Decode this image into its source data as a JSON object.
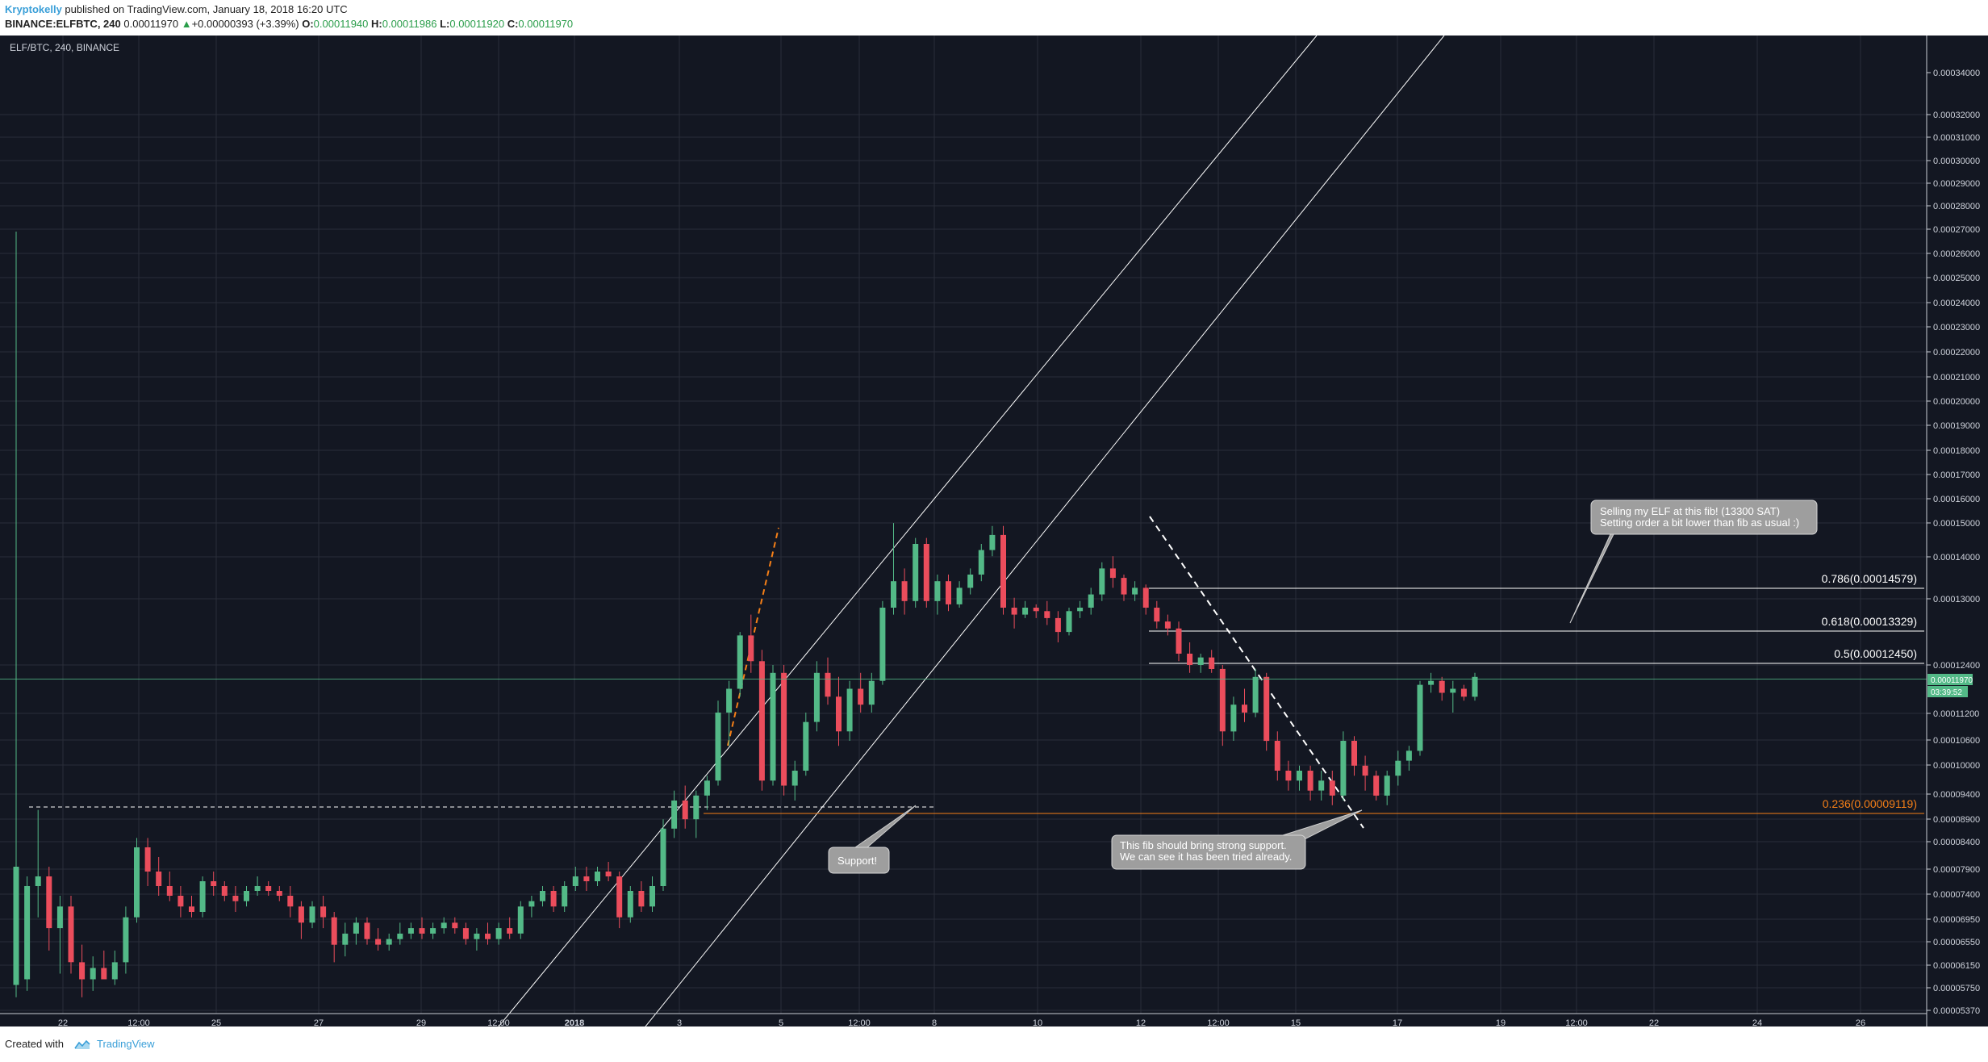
{
  "header": {
    "author": "Kryptokelly",
    "published": " published on TradingView.com, January 18, 2018 16:20 UTC",
    "symbol": "BINANCE:ELFBTC, 240",
    "last": "0.00011970",
    "change_arrow": "▲",
    "change": "+0.00000393 (+3.39%)",
    "o_label": "O:",
    "o_value": "0.00011940",
    "h_label": "H:",
    "h_value": "0.00011986",
    "l_label": "L:",
    "l_value": "0.00011920",
    "c_label": "C:",
    "c_value": "0.00011970"
  },
  "chart_data": {
    "type": "candlestick",
    "title": "ELF/BTC, 240, BINANCE",
    "y_ticks": [
      "0.00034000",
      "0.00032000",
      "0.00031000",
      "0.00030000",
      "0.00029000",
      "0.00028000",
      "0.00027000",
      "0.00026000",
      "0.00025000",
      "0.00024000",
      "0.00023000",
      "0.00022000",
      "0.00021000",
      "0.00020000",
      "0.00019000",
      "0.00018000",
      "0.00017000",
      "0.00016000",
      "0.00015000",
      "0.00014000",
      "0.00013000",
      "0.00012400",
      "0.00011200",
      "0.00010600",
      "0.00010000",
      "0.00009400",
      "0.00008900",
      "0.00008400",
      "0.00007900",
      "0.00007400",
      "0.00006950",
      "0.00006550",
      "0.00006150",
      "0.00005750",
      "0.00005370"
    ],
    "x_ticks": [
      "22",
      "12:00",
      "25",
      "27",
      "29",
      "12:00",
      "2018",
      "3",
      "5",
      "12:00",
      "8",
      "10",
      "12",
      "12:00",
      "15",
      "17",
      "19",
      "12:00",
      "22",
      "24",
      "26"
    ],
    "last_price_label": "0.00011970",
    "countdown_label": "03:39:52",
    "fib_levels": [
      {
        "label": "0.786(0.00014579)",
        "price": 0.00014579
      },
      {
        "label": "0.618(0.00013329)",
        "price": 0.00013329
      },
      {
        "label": "0.5(0.00012450)",
        "price": 0.0001245
      },
      {
        "label": "0.236(0.00009119)",
        "price": 9.119e-05
      }
    ],
    "annotations": [
      {
        "lines": [
          "Selling my ELF at this fib! (13300 SAT)",
          "Setting order a bit lower than fib as usual :)"
        ]
      },
      {
        "lines": [
          "Support!"
        ]
      },
      {
        "lines": [
          "This fib should bring strong support.",
          "We can see it has been tried already."
        ]
      }
    ],
    "candles": [
      {
        "o": 5.8e-05,
        "h": 0.00029,
        "l": 5.6e-05,
        "c": 8e-05
      },
      {
        "o": 5.9e-05,
        "h": 7.8e-05,
        "l": 5.7e-05,
        "c": 7.6e-05
      },
      {
        "o": 7.6e-05,
        "h": 9.2e-05,
        "l": 7e-05,
        "c": 7.8e-05
      },
      {
        "o": 7.8e-05,
        "h": 8e-05,
        "l": 6.4e-05,
        "c": 6.8e-05
      },
      {
        "o": 6.8e-05,
        "h": 7.4e-05,
        "l": 6e-05,
        "c": 7.2e-05
      },
      {
        "o": 7.2e-05,
        "h": 7.4e-05,
        "l": 6e-05,
        "c": 6.2e-05
      },
      {
        "o": 6.2e-05,
        "h": 6.5e-05,
        "l": 5.6e-05,
        "c": 5.9e-05
      },
      {
        "o": 5.9e-05,
        "h": 6.3e-05,
        "l": 5.7e-05,
        "c": 6.1e-05
      },
      {
        "o": 6.1e-05,
        "h": 6.4e-05,
        "l": 5.9e-05,
        "c": 5.9e-05
      },
      {
        "o": 5.9e-05,
        "h": 6.4e-05,
        "l": 5.8e-05,
        "c": 6.2e-05
      },
      {
        "o": 6.2e-05,
        "h": 7.2e-05,
        "l": 6e-05,
        "c": 7e-05
      },
      {
        "o": 7e-05,
        "h": 8.6e-05,
        "l": 6.9e-05,
        "c": 8.4e-05
      },
      {
        "o": 8.4e-05,
        "h": 8.6e-05,
        "l": 7.6e-05,
        "c": 7.9e-05
      },
      {
        "o": 7.9e-05,
        "h": 8.2e-05,
        "l": 7.4e-05,
        "c": 7.6e-05
      },
      {
        "o": 7.6e-05,
        "h": 7.9e-05,
        "l": 7.3e-05,
        "c": 7.4e-05
      },
      {
        "o": 7.4e-05,
        "h": 7.6e-05,
        "l": 7e-05,
        "c": 7.2e-05
      },
      {
        "o": 7.2e-05,
        "h": 7.4e-05,
        "l": 7e-05,
        "c": 7.1e-05
      },
      {
        "o": 7.1e-05,
        "h": 7.8e-05,
        "l": 7e-05,
        "c": 7.7e-05
      },
      {
        "o": 7.7e-05,
        "h": 7.9e-05,
        "l": 7.4e-05,
        "c": 7.6e-05
      },
      {
        "o": 7.6e-05,
        "h": 7.7e-05,
        "l": 7.3e-05,
        "c": 7.4e-05
      },
      {
        "o": 7.4e-05,
        "h": 7.6e-05,
        "l": 7.1e-05,
        "c": 7.3e-05
      },
      {
        "o": 7.3e-05,
        "h": 7.6e-05,
        "l": 7.2e-05,
        "c": 7.5e-05
      },
      {
        "o": 7.5e-05,
        "h": 7.8e-05,
        "l": 7.4e-05,
        "c": 7.6e-05
      },
      {
        "o": 7.6e-05,
        "h": 7.7e-05,
        "l": 7.4e-05,
        "c": 7.5e-05
      },
      {
        "o": 7.5e-05,
        "h": 7.6e-05,
        "l": 7.3e-05,
        "c": 7.4e-05
      },
      {
        "o": 7.4e-05,
        "h": 7.6e-05,
        "l": 7e-05,
        "c": 7.2e-05
      },
      {
        "o": 7.2e-05,
        "h": 7.3e-05,
        "l": 6.6e-05,
        "c": 6.9e-05
      },
      {
        "o": 6.9e-05,
        "h": 7.3e-05,
        "l": 6.8e-05,
        "c": 7.2e-05
      },
      {
        "o": 7.2e-05,
        "h": 7.4e-05,
        "l": 6.8e-05,
        "c": 7e-05
      },
      {
        "o": 7e-05,
        "h": 7.1e-05,
        "l": 6.2e-05,
        "c": 6.5e-05
      },
      {
        "o": 6.5e-05,
        "h": 6.9e-05,
        "l": 6.3e-05,
        "c": 6.7e-05
      },
      {
        "o": 6.7e-05,
        "h": 7e-05,
        "l": 6.5e-05,
        "c": 6.9e-05
      },
      {
        "o": 6.9e-05,
        "h": 7e-05,
        "l": 6.5e-05,
        "c": 6.6e-05
      },
      {
        "o": 6.6e-05,
        "h": 6.8e-05,
        "l": 6.4e-05,
        "c": 6.5e-05
      },
      {
        "o": 6.5e-05,
        "h": 6.7e-05,
        "l": 6.4e-05,
        "c": 6.6e-05
      },
      {
        "o": 6.6e-05,
        "h": 6.9e-05,
        "l": 6.5e-05,
        "c": 6.7e-05
      },
      {
        "o": 6.7e-05,
        "h": 6.9e-05,
        "l": 6.6e-05,
        "c": 6.8e-05
      },
      {
        "o": 6.8e-05,
        "h": 7e-05,
        "l": 6.6e-05,
        "c": 6.7e-05
      },
      {
        "o": 6.7e-05,
        "h": 6.9e-05,
        "l": 6.6e-05,
        "c": 6.8e-05
      },
      {
        "o": 6.8e-05,
        "h": 7e-05,
        "l": 6.7e-05,
        "c": 6.9e-05
      },
      {
        "o": 6.9e-05,
        "h": 7e-05,
        "l": 6.7e-05,
        "c": 6.8e-05
      },
      {
        "o": 6.8e-05,
        "h": 6.9e-05,
        "l": 6.5e-05,
        "c": 6.6e-05
      },
      {
        "o": 6.6e-05,
        "h": 6.8e-05,
        "l": 6.4e-05,
        "c": 6.7e-05
      },
      {
        "o": 6.7e-05,
        "h": 6.9e-05,
        "l": 6.5e-05,
        "c": 6.6e-05
      },
      {
        "o": 6.6e-05,
        "h": 6.9e-05,
        "l": 6.5e-05,
        "c": 6.8e-05
      },
      {
        "o": 6.8e-05,
        "h": 7e-05,
        "l": 6.6e-05,
        "c": 6.7e-05
      },
      {
        "o": 6.7e-05,
        "h": 7.3e-05,
        "l": 6.6e-05,
        "c": 7.2e-05
      },
      {
        "o": 7.2e-05,
        "h": 7.4e-05,
        "l": 7e-05,
        "c": 7.3e-05
      },
      {
        "o": 7.3e-05,
        "h": 7.6e-05,
        "l": 7.2e-05,
        "c": 7.5e-05
      },
      {
        "o": 7.5e-05,
        "h": 7.6e-05,
        "l": 7.1e-05,
        "c": 7.2e-05
      },
      {
        "o": 7.2e-05,
        "h": 7.7e-05,
        "l": 7.1e-05,
        "c": 7.6e-05
      },
      {
        "o": 7.6e-05,
        "h": 8e-05,
        "l": 7.5e-05,
        "c": 7.8e-05
      },
      {
        "o": 7.8e-05,
        "h": 8e-05,
        "l": 7.5e-05,
        "c": 7.7e-05
      },
      {
        "o": 7.7e-05,
        "h": 8e-05,
        "l": 7.6e-05,
        "c": 7.9e-05
      },
      {
        "o": 7.9e-05,
        "h": 8.1e-05,
        "l": 7.7e-05,
        "c": 7.8e-05
      },
      {
        "o": 7.8e-05,
        "h": 7.9e-05,
        "l": 6.8e-05,
        "c": 7e-05
      },
      {
        "o": 7e-05,
        "h": 7.6e-05,
        "l": 6.9e-05,
        "c": 7.5e-05
      },
      {
        "o": 7.5e-05,
        "h": 7.7e-05,
        "l": 7.1e-05,
        "c": 7.2e-05
      },
      {
        "o": 7.2e-05,
        "h": 7.8e-05,
        "l": 7.1e-05,
        "c": 7.6e-05
      },
      {
        "o": 7.6e-05,
        "h": 9e-05,
        "l": 7.5e-05,
        "c": 8.8e-05
      },
      {
        "o": 8.8e-05,
        "h": 9.6e-05,
        "l": 8.6e-05,
        "c": 9.4e-05
      },
      {
        "o": 9.4e-05,
        "h": 9.7e-05,
        "l": 8.8e-05,
        "c": 9e-05
      },
      {
        "o": 9e-05,
        "h": 9.6e-05,
        "l": 8.6e-05,
        "c": 9.5e-05
      },
      {
        "o": 9.5e-05,
        "h": 9.9e-05,
        "l": 9.2e-05,
        "c": 9.8e-05
      },
      {
        "o": 9.8e-05,
        "h": 0.000115,
        "l": 9.7e-05,
        "c": 0.000112
      },
      {
        "o": 0.000112,
        "h": 0.00012,
        "l": 0.000105,
        "c": 0.000118
      },
      {
        "o": 0.000118,
        "h": 0.000133,
        "l": 0.000116,
        "c": 0.000132
      },
      {
        "o": 0.000132,
        "h": 0.000138,
        "l": 0.000122,
        "c": 0.000125
      },
      {
        "o": 0.000125,
        "h": 0.000128,
        "l": 9.6e-05,
        "c": 9.8e-05
      },
      {
        "o": 9.8e-05,
        "h": 0.000124,
        "l": 9.7e-05,
        "c": 0.000122
      },
      {
        "o": 0.000122,
        "h": 0.000124,
        "l": 9.5e-05,
        "c": 9.7e-05
      },
      {
        "o": 9.7e-05,
        "h": 0.000102,
        "l": 9.4e-05,
        "c": 0.0001
      },
      {
        "o": 0.0001,
        "h": 0.000112,
        "l": 9.9e-05,
        "c": 0.00011
      },
      {
        "o": 0.00011,
        "h": 0.000125,
        "l": 0.000108,
        "c": 0.000122
      },
      {
        "o": 0.000122,
        "h": 0.000126,
        "l": 0.000114,
        "c": 0.000116
      },
      {
        "o": 0.000116,
        "h": 0.000121,
        "l": 0.000105,
        "c": 0.000108
      },
      {
        "o": 0.000108,
        "h": 0.00012,
        "l": 0.000106,
        "c": 0.000118
      },
      {
        "o": 0.000118,
        "h": 0.000122,
        "l": 0.000112,
        "c": 0.000114
      },
      {
        "o": 0.000114,
        "h": 0.000122,
        "l": 0.000112,
        "c": 0.00012
      },
      {
        "o": 0.00012,
        "h": 0.000142,
        "l": 0.000119,
        "c": 0.00014
      },
      {
        "o": 0.00014,
        "h": 0.000167,
        "l": 0.000138,
        "c": 0.000148
      },
      {
        "o": 0.000148,
        "h": 0.000152,
        "l": 0.000138,
        "c": 0.000142
      },
      {
        "o": 0.000142,
        "h": 0.000162,
        "l": 0.00014,
        "c": 0.00016
      },
      {
        "o": 0.00016,
        "h": 0.000162,
        "l": 0.00014,
        "c": 0.000142
      },
      {
        "o": 0.000142,
        "h": 0.00015,
        "l": 0.000138,
        "c": 0.000148
      },
      {
        "o": 0.000148,
        "h": 0.00015,
        "l": 0.000139,
        "c": 0.000141
      },
      {
        "o": 0.000141,
        "h": 0.000148,
        "l": 0.00014,
        "c": 0.000146
      },
      {
        "o": 0.000146,
        "h": 0.000152,
        "l": 0.000144,
        "c": 0.00015
      },
      {
        "o": 0.00015,
        "h": 0.00016,
        "l": 0.000148,
        "c": 0.000158
      },
      {
        "o": 0.000158,
        "h": 0.000166,
        "l": 0.000156,
        "c": 0.000163
      },
      {
        "o": 0.000163,
        "h": 0.000166,
        "l": 0.000138,
        "c": 0.00014
      },
      {
        "o": 0.00014,
        "h": 0.000143,
        "l": 0.000134,
        "c": 0.000138
      },
      {
        "o": 0.000138,
        "h": 0.000142,
        "l": 0.000137,
        "c": 0.00014
      },
      {
        "o": 0.00014,
        "h": 0.000141,
        "l": 0.000137,
        "c": 0.000139
      },
      {
        "o": 0.000139,
        "h": 0.000142,
        "l": 0.000135,
        "c": 0.000137
      },
      {
        "o": 0.000137,
        "h": 0.000139,
        "l": 0.00013,
        "c": 0.000133
      },
      {
        "o": 0.000133,
        "h": 0.00014,
        "l": 0.000132,
        "c": 0.000139
      },
      {
        "o": 0.000139,
        "h": 0.000142,
        "l": 0.000137,
        "c": 0.00014
      },
      {
        "o": 0.00014,
        "h": 0.000146,
        "l": 0.000138,
        "c": 0.000144
      },
      {
        "o": 0.000144,
        "h": 0.000154,
        "l": 0.000142,
        "c": 0.000152
      },
      {
        "o": 0.000152,
        "h": 0.000156,
        "l": 0.000146,
        "c": 0.000149
      },
      {
        "o": 0.000149,
        "h": 0.00015,
        "l": 0.000142,
        "c": 0.000144
      },
      {
        "o": 0.000144,
        "h": 0.000148,
        "l": 0.000142,
        "c": 0.000146
      },
      {
        "o": 0.000146,
        "h": 0.000147,
        "l": 0.000138,
        "c": 0.00014
      },
      {
        "o": 0.00014,
        "h": 0.000142,
        "l": 0.000134,
        "c": 0.000136
      },
      {
        "o": 0.000136,
        "h": 0.000138,
        "l": 0.000132,
        "c": 0.000134
      },
      {
        "o": 0.000134,
        "h": 0.000136,
        "l": 0.000125,
        "c": 0.000127
      },
      {
        "o": 0.000127,
        "h": 0.00013,
        "l": 0.000122,
        "c": 0.000124
      },
      {
        "o": 0.000124,
        "h": 0.000127,
        "l": 0.000122,
        "c": 0.000126
      },
      {
        "o": 0.000126,
        "h": 0.000128,
        "l": 0.000122,
        "c": 0.000123
      },
      {
        "o": 0.000123,
        "h": 0.000124,
        "l": 0.000105,
        "c": 0.000108
      },
      {
        "o": 0.000108,
        "h": 0.000116,
        "l": 0.000106,
        "c": 0.000114
      },
      {
        "o": 0.000114,
        "h": 0.000118,
        "l": 0.00011,
        "c": 0.000112
      },
      {
        "o": 0.000112,
        "h": 0.000123,
        "l": 0.000111,
        "c": 0.000121
      },
      {
        "o": 0.000121,
        "h": 0.000122,
        "l": 0.000104,
        "c": 0.000106
      },
      {
        "o": 0.000106,
        "h": 0.000108,
        "l": 9.8e-05,
        "c": 0.0001
      },
      {
        "o": 0.0001,
        "h": 0.000102,
        "l": 9.6e-05,
        "c": 9.8e-05
      },
      {
        "o": 9.8e-05,
        "h": 0.000101,
        "l": 9.6e-05,
        "c": 0.0001
      },
      {
        "o": 0.0001,
        "h": 0.000101,
        "l": 9.4e-05,
        "c": 9.6e-05
      },
      {
        "o": 9.6e-05,
        "h": 0.0001,
        "l": 9.4e-05,
        "c": 9.8e-05
      },
      {
        "o": 9.8e-05,
        "h": 0.0001,
        "l": 9.3e-05,
        "c": 9.5e-05
      },
      {
        "o": 9.5e-05,
        "h": 0.000108,
        "l": 9.4e-05,
        "c": 0.000106
      },
      {
        "o": 0.000106,
        "h": 0.000107,
        "l": 9.9e-05,
        "c": 0.000101
      },
      {
        "o": 0.000101,
        "h": 0.000103,
        "l": 9.6e-05,
        "c": 9.9e-05
      },
      {
        "o": 9.9e-05,
        "h": 0.0001,
        "l": 9.4e-05,
        "c": 9.5e-05
      },
      {
        "o": 9.5e-05,
        "h": 0.0001,
        "l": 9.3e-05,
        "c": 9.9e-05
      },
      {
        "o": 9.9e-05,
        "h": 0.000104,
        "l": 9.7e-05,
        "c": 0.000102
      },
      {
        "o": 0.000102,
        "h": 0.000105,
        "l": 0.0001,
        "c": 0.000104
      },
      {
        "o": 0.000104,
        "h": 0.00012,
        "l": 0.000103,
        "c": 0.000119
      },
      {
        "o": 0.000119,
        "h": 0.000122,
        "l": 0.000117,
        "c": 0.00012
      },
      {
        "o": 0.00012,
        "h": 0.000121,
        "l": 0.000115,
        "c": 0.000117
      },
      {
        "o": 0.000117,
        "h": 0.00012,
        "l": 0.000112,
        "c": 0.000118
      },
      {
        "o": 0.000118,
        "h": 0.000119,
        "l": 0.000115,
        "c": 0.000116
      },
      {
        "o": 0.000116,
        "h": 0.000122,
        "l": 0.000115,
        "c": 0.000121
      }
    ],
    "colors": {
      "background": "#131722",
      "up": "#53b987",
      "down": "#eb4d5c",
      "fib": "#ffffff",
      "fib_support": "#f57f17",
      "trend": "#ffffff",
      "grid": "#2a2e39"
    }
  },
  "footer": {
    "created": "Created with",
    "brand": "TradingView"
  }
}
